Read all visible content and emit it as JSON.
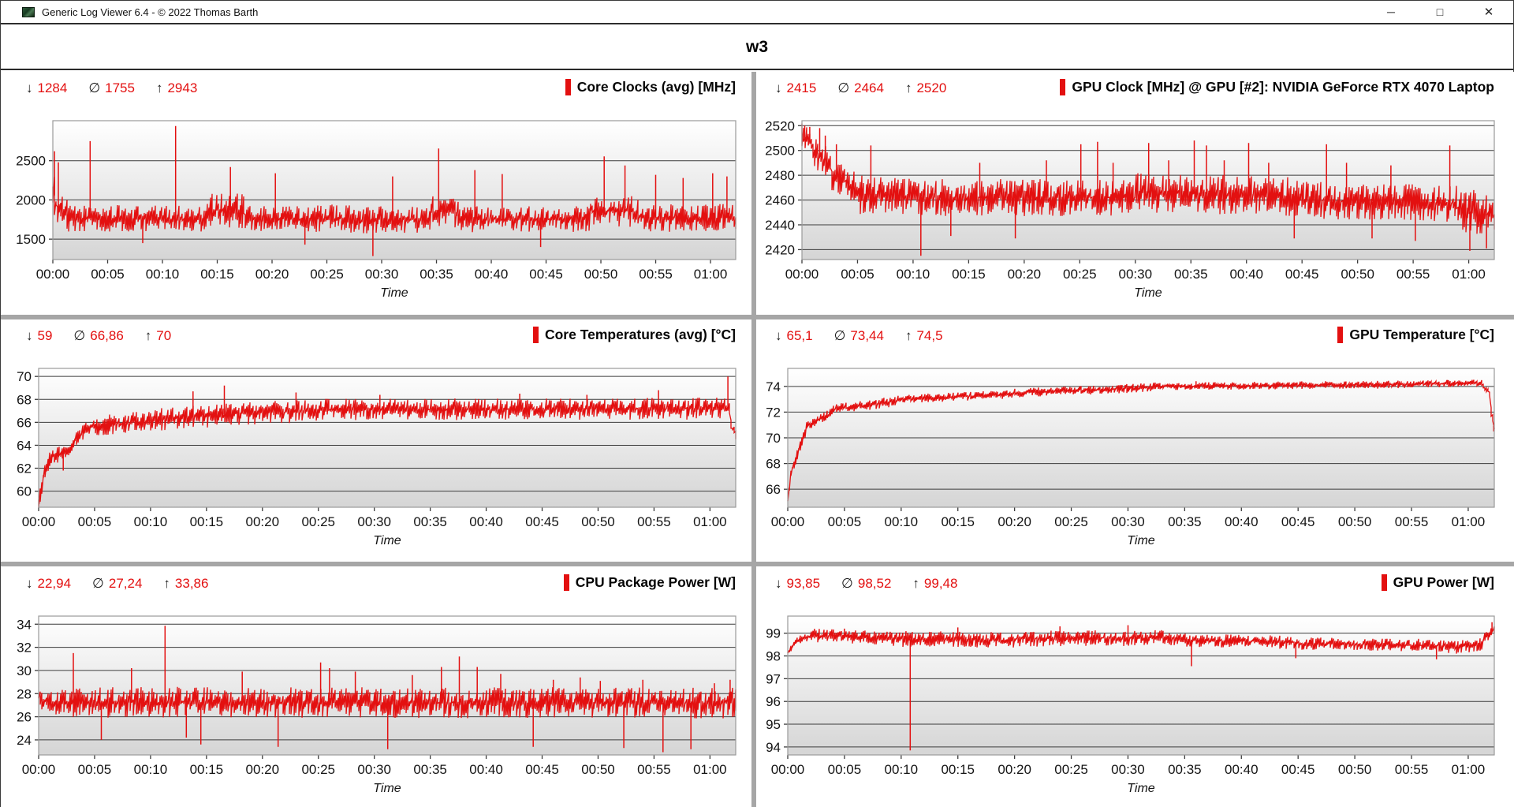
{
  "window": {
    "title": "Generic Log Viewer 6.4 - © 2022 Thomas Barth",
    "controls": {
      "minimize": "─",
      "maximize": "□",
      "close": "✕"
    }
  },
  "header": {
    "title": "w3"
  },
  "stats_symbols": {
    "min": "↓",
    "avg": "∅",
    "max": "↑"
  },
  "colors": {
    "accent_red": "#e31010",
    "grid_line": "#3c3c3c",
    "plot_border": "#9a9a9a",
    "plot_bg_top": "#ffffff",
    "plot_bg_bottom": "#d5d5d5",
    "divider": "#a6a6a6",
    "tick": "#3c3c3c"
  },
  "x_axis": {
    "label": "Time",
    "tick_labels": [
      "00:00",
      "00:05",
      "00:10",
      "00:15",
      "00:20",
      "00:25",
      "00:30",
      "00:35",
      "00:40",
      "00:45",
      "00:50",
      "00:55",
      "01:00"
    ],
    "tick_minutes": [
      0,
      5,
      10,
      15,
      20,
      25,
      30,
      35,
      40,
      45,
      50,
      55,
      60
    ],
    "t_max": 62.3
  },
  "chart_data": {
    "note": "see charts[] — six red line time-series over 0..~62 min"
  },
  "charts": [
    {
      "title": "Core Clocks (avg) [MHz]",
      "stats": {
        "min": "1284",
        "avg": "1755",
        "max": "2943"
      },
      "y_ticks": [
        2500,
        2000,
        1500
      ],
      "y_min": 1240,
      "y_max": 3010,
      "label_digits": 4,
      "series": {
        "segments": [
          [
            0,
            0.4,
            2150,
            1900,
            260
          ],
          [
            0.4,
            1.5,
            1880,
            1790,
            200
          ],
          [
            1.5,
            14,
            1770,
            1755,
            170
          ],
          [
            14,
            17.5,
            1880,
            1860,
            220
          ],
          [
            17.5,
            24,
            1755,
            1755,
            170
          ],
          [
            24,
            29,
            1770,
            1740,
            185
          ],
          [
            29,
            34.5,
            1750,
            1750,
            170
          ],
          [
            34.5,
            37,
            1850,
            1840,
            205
          ],
          [
            37,
            49,
            1755,
            1760,
            170
          ],
          [
            49,
            53.5,
            1865,
            1850,
            200
          ],
          [
            53.5,
            62.3,
            1775,
            1770,
            180
          ]
        ],
        "spikes": [
          [
            0.15,
            2620
          ],
          [
            0.5,
            2480
          ],
          [
            3.4,
            2750
          ],
          [
            11.2,
            2943
          ],
          [
            8.2,
            1450
          ],
          [
            16.2,
            2420
          ],
          [
            20.3,
            2340
          ],
          [
            23,
            1430
          ],
          [
            29.2,
            1284
          ],
          [
            31,
            2300
          ],
          [
            35.2,
            2655
          ],
          [
            38.5,
            2380
          ],
          [
            41,
            2330
          ],
          [
            44.5,
            1400
          ],
          [
            50.3,
            2555
          ],
          [
            52.2,
            2440
          ],
          [
            55,
            2320
          ],
          [
            57.5,
            2280
          ],
          [
            60.2,
            2340
          ],
          [
            61.5,
            2300
          ]
        ]
      }
    },
    {
      "title": "GPU Clock [MHz] @ GPU [#2]: NVIDIA GeForce RTX 4070 Laptop",
      "stats": {
        "min": "2415",
        "avg": "2464",
        "max": "2520"
      },
      "y_ticks": [
        2520,
        2500,
        2480,
        2460,
        2440,
        2420
      ],
      "y_min": 2412,
      "y_max": 2524,
      "label_digits": 4,
      "series": {
        "segments": [
          [
            0,
            0.9,
            2512,
            2505,
            10
          ],
          [
            0.9,
            2.6,
            2498,
            2490,
            13
          ],
          [
            2.6,
            5,
            2480,
            2470,
            14
          ],
          [
            5,
            12,
            2464,
            2462,
            16
          ],
          [
            12,
            30,
            2462,
            2462,
            15
          ],
          [
            30,
            45,
            2466,
            2463,
            16
          ],
          [
            45,
            59,
            2460,
            2457,
            15
          ],
          [
            59,
            62.3,
            2452,
            2448,
            18
          ]
        ],
        "spikes": [
          [
            0.25,
            2520
          ],
          [
            0.7,
            2519
          ],
          [
            1.6,
            2518
          ],
          [
            2.1,
            2512
          ],
          [
            3.1,
            2505
          ],
          [
            6.2,
            2504
          ],
          [
            10.7,
            2415
          ],
          [
            13.4,
            2431
          ],
          [
            16,
            2490
          ],
          [
            19.2,
            2429
          ],
          [
            22,
            2492
          ],
          [
            25.1,
            2505
          ],
          [
            26.6,
            2507
          ],
          [
            28,
            2490
          ],
          [
            31.2,
            2506
          ],
          [
            33,
            2492
          ],
          [
            35.3,
            2508
          ],
          [
            36.4,
            2504
          ],
          [
            38,
            2492
          ],
          [
            40.2,
            2506
          ],
          [
            42,
            2490
          ],
          [
            44.3,
            2429
          ],
          [
            47.2,
            2505
          ],
          [
            49,
            2490
          ],
          [
            51.3,
            2429
          ],
          [
            53,
            2488
          ],
          [
            55.2,
            2427
          ],
          [
            58.3,
            2504
          ],
          [
            60.1,
            2419
          ],
          [
            61.6,
            2421
          ]
        ]
      }
    },
    {
      "title": "Core Temperatures (avg) [°C]",
      "stats": {
        "min": "59",
        "avg": "66,86",
        "max": "70"
      },
      "y_ticks": [
        70,
        68,
        66,
        64,
        62,
        60
      ],
      "y_min": 58.6,
      "y_max": 70.7,
      "label_digits": 2,
      "series": {
        "segments": [
          [
            0,
            0.35,
            59,
            60.5,
            0.7
          ],
          [
            0.35,
            1.1,
            61,
            63,
            0.7
          ],
          [
            1.1,
            3,
            63,
            63.6,
            0.7
          ],
          [
            3,
            4.6,
            64.3,
            65.5,
            0.8
          ],
          [
            4.6,
            10,
            65.7,
            66.1,
            0.9
          ],
          [
            10,
            16,
            66.2,
            66.6,
            1.0
          ],
          [
            16,
            25,
            66.7,
            67,
            1.0
          ],
          [
            25,
            61.8,
            67.1,
            67.2,
            0.95
          ],
          [
            61.8,
            62.3,
            65.8,
            64.9,
            0.6
          ]
        ],
        "spikes": [
          [
            0.05,
            58.9
          ],
          [
            2.2,
            61.8
          ],
          [
            13.8,
            68.7
          ],
          [
            16.6,
            69.2
          ],
          [
            23,
            68.6
          ],
          [
            30.5,
            68.4
          ],
          [
            43,
            68.5
          ],
          [
            49,
            68.4
          ],
          [
            55.4,
            68.8
          ],
          [
            61.6,
            70
          ]
        ]
      }
    },
    {
      "title": "GPU Temperature [°C]",
      "stats": {
        "min": "65,1",
        "avg": "73,44",
        "max": "74,5"
      },
      "y_ticks": [
        74,
        72,
        70,
        68,
        66
      ],
      "y_min": 64.6,
      "y_max": 75.4,
      "label_digits": 2,
      "series": {
        "segments": [
          [
            0,
            0.25,
            65.1,
            66.8,
            0.3
          ],
          [
            0.25,
            1.6,
            67.2,
            70.6,
            0.4
          ],
          [
            1.6,
            4,
            70.9,
            72,
            0.4
          ],
          [
            4,
            10,
            72.2,
            72.9,
            0.4
          ],
          [
            10,
            20,
            73,
            73.4,
            0.35
          ],
          [
            20,
            32,
            73.5,
            73.9,
            0.35
          ],
          [
            32,
            55,
            74,
            74.15,
            0.3
          ],
          [
            55,
            61.2,
            74.2,
            74.25,
            0.28
          ],
          [
            61.2,
            61.9,
            74.1,
            73.5,
            0.3
          ],
          [
            61.9,
            62.3,
            72.5,
            70.7,
            0.5
          ]
        ],
        "spikes": [
          [
            36,
            74.4
          ],
          [
            58.2,
            74.5
          ],
          [
            62.25,
            70.5
          ]
        ]
      }
    },
    {
      "title": "CPU Package Power [W]",
      "stats": {
        "min": "22,94",
        "avg": "27,24",
        "max": "33,86"
      },
      "y_ticks": [
        34,
        32,
        30,
        28,
        26,
        24
      ],
      "y_min": 22.7,
      "y_max": 34.7,
      "label_digits": 2,
      "series": {
        "segments": [
          [
            0,
            1.2,
            27.6,
            27.3,
            1.2
          ],
          [
            1.2,
            62.3,
            27.25,
            27.2,
            1.35
          ]
        ],
        "spikes": [
          [
            3.1,
            31.5
          ],
          [
            5.6,
            24
          ],
          [
            8.3,
            30.2
          ],
          [
            11.3,
            33.86
          ],
          [
            13.2,
            24.2
          ],
          [
            14.5,
            23.6
          ],
          [
            18.2,
            29.9
          ],
          [
            21.4,
            23.4
          ],
          [
            25.2,
            30.7
          ],
          [
            26,
            30.2
          ],
          [
            28.3,
            29.9
          ],
          [
            31.2,
            23.2
          ],
          [
            33.4,
            29.6
          ],
          [
            36,
            30.3
          ],
          [
            37.6,
            31.2
          ],
          [
            39.2,
            30.3
          ],
          [
            41.3,
            29.7
          ],
          [
            44.2,
            23.4
          ],
          [
            46,
            29.2
          ],
          [
            48.4,
            29.4
          ],
          [
            50.2,
            29.1
          ],
          [
            52.3,
            23.3
          ],
          [
            54,
            29.2
          ],
          [
            55.8,
            22.94
          ],
          [
            58.3,
            23.2
          ],
          [
            60.4,
            28.9
          ],
          [
            61.8,
            29.2
          ]
        ]
      }
    },
    {
      "title": "GPU Power [W]",
      "stats": {
        "min": "93,85",
        "avg": "98,52",
        "max": "99,48"
      },
      "y_ticks": [
        99,
        98,
        97,
        96,
        95,
        94
      ],
      "y_min": 93.65,
      "y_max": 99.75,
      "label_digits": 2,
      "series": {
        "segments": [
          [
            0,
            0.6,
            98.15,
            98.55,
            0.15
          ],
          [
            0.6,
            2.2,
            98.6,
            98.9,
            0.2
          ],
          [
            2.2,
            8,
            98.9,
            98.8,
            0.3
          ],
          [
            8,
            20,
            98.75,
            98.7,
            0.35
          ],
          [
            20,
            34,
            98.75,
            98.8,
            0.35
          ],
          [
            34,
            45,
            98.7,
            98.6,
            0.3
          ],
          [
            45,
            58,
            98.55,
            98.45,
            0.28
          ],
          [
            58,
            61.3,
            98.35,
            98.5,
            0.3
          ],
          [
            61.3,
            62.3,
            98.7,
            99.15,
            0.25
          ]
        ],
        "spikes": [
          [
            5,
            99.2
          ],
          [
            10.8,
            93.85
          ],
          [
            15,
            99.25
          ],
          [
            24,
            99.3
          ],
          [
            30,
            99.35
          ],
          [
            35.6,
            97.55
          ],
          [
            44.8,
            97.9
          ],
          [
            57.2,
            97.85
          ],
          [
            62.1,
            99.48
          ]
        ]
      }
    }
  ]
}
